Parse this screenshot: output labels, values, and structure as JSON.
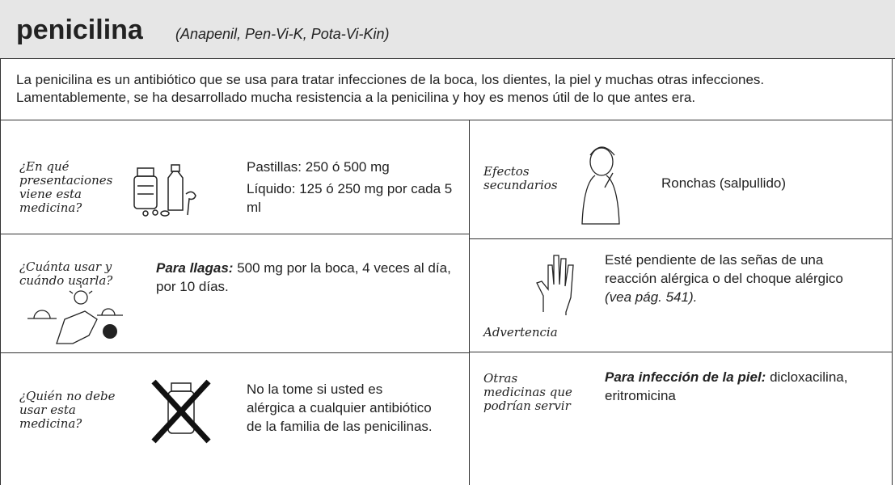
{
  "header": {
    "title": "penicilina",
    "brands": "(Anapenil, Pen-Vi-K, Pota-Vi-Kin)"
  },
  "intro": "La penicilina es un antibiótico que se usa para tratar infecciones de la boca, los dientes, la piel y muchas otras infecciones. Lamentablemente, se ha desarrollado mucha resistencia a la penicilina y hoy es menos útil de lo que antes era.",
  "presentations": {
    "label": "¿En qué presentaciones viene esta medicina?",
    "lines": [
      "Pastillas: 250 ó 500 mg",
      "Líquido: 125 ó 250 mg por cada 5 ml"
    ]
  },
  "dosage": {
    "label": "¿Cuánta usar y cuándo usarla?",
    "lead": "Para llagas:",
    "text": "500 mg por la boca, 4 veces al día, por 10 días."
  },
  "contraindications": {
    "label": "¿Quién no debe usar esta medicina?",
    "text": "No la tome si usted es alérgica a cualquier antibiótico de la familia de las penicilinas."
  },
  "side_effects": {
    "label": "Efectos secundarios",
    "text": "Ronchas (salpullido)"
  },
  "warning": {
    "label": "Advertencia",
    "text": "Esté pendiente de las señas de una reacción alérgica o del choque alérgico",
    "ref": "(vea pág. 541)."
  },
  "alternatives": {
    "label": "Otras medicinas que podrían servir",
    "lead": "Para infección de la piel:",
    "text": "dicloxacilina, eritromicina"
  }
}
